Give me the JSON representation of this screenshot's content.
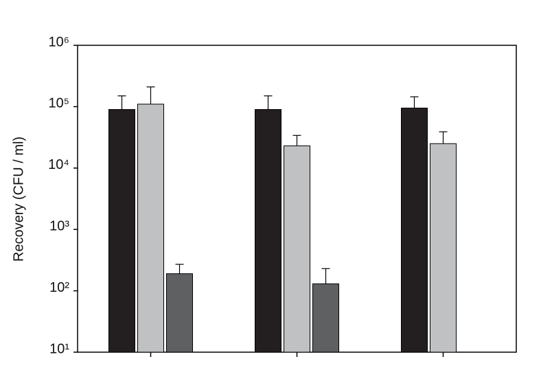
{
  "chart_data": {
    "type": "bar",
    "y_label": "Recovery   (CFU / ml)",
    "categories": [
      null,
      null,
      null
    ],
    "series": [
      {
        "color": "#231f20",
        "values": [
          90000,
          90000,
          95000
        ],
        "errors": [
          60000,
          60000,
          50000
        ]
      },
      {
        "color": "#c0c1c3",
        "values": [
          110000,
          23000,
          25000
        ],
        "errors": [
          100000,
          11000,
          14000
        ]
      },
      {
        "color": "#5f6062",
        "values": [
          190,
          130,
          null
        ],
        "errors": [
          80,
          100,
          null
        ]
      }
    ],
    "ylim": [
      10,
      1000000
    ],
    "log_scale": true,
    "yticks": [
      {
        "value": 10,
        "label": "10¹"
      },
      {
        "value": 100,
        "label": "10²"
      },
      {
        "value": 1000,
        "label": "10³"
      },
      {
        "value": 10000,
        "label": "10⁴"
      },
      {
        "value": 100000,
        "label": "10⁵"
      },
      {
        "value": 1000000,
        "label": "10⁶"
      }
    ]
  }
}
